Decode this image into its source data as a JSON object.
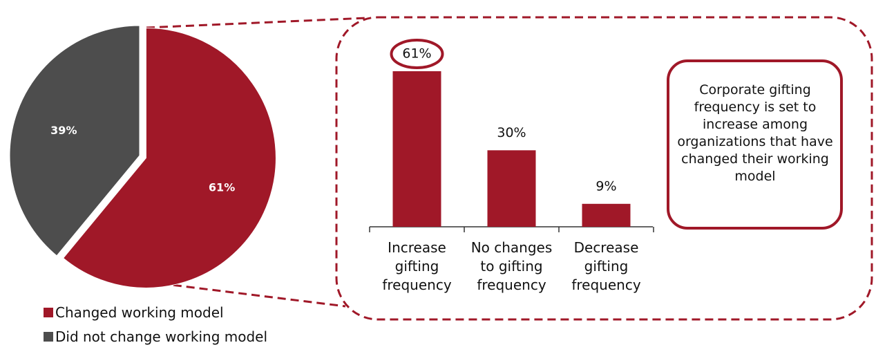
{
  "chart_data": [
    {
      "type": "pie",
      "categories": [
        "Changed working model",
        "Did not change working model"
      ],
      "values": [
        61,
        39
      ],
      "value_labels": [
        "61%",
        "39%"
      ],
      "colors": [
        "#a01828",
        "#4d4d4d"
      ],
      "legend": "bottom-left"
    },
    {
      "type": "bar",
      "categories": [
        "Increase gifting frequency",
        "No changes to gifting frequency",
        "Decrease gifting frequency"
      ],
      "values": [
        61,
        30,
        9
      ],
      "value_labels": [
        "61%",
        "30%",
        "9%"
      ],
      "color": "#a01828",
      "annotations": [
        "Corporate gifting frequency is set to increase among organizations that have changed their working model"
      ]
    }
  ]
}
